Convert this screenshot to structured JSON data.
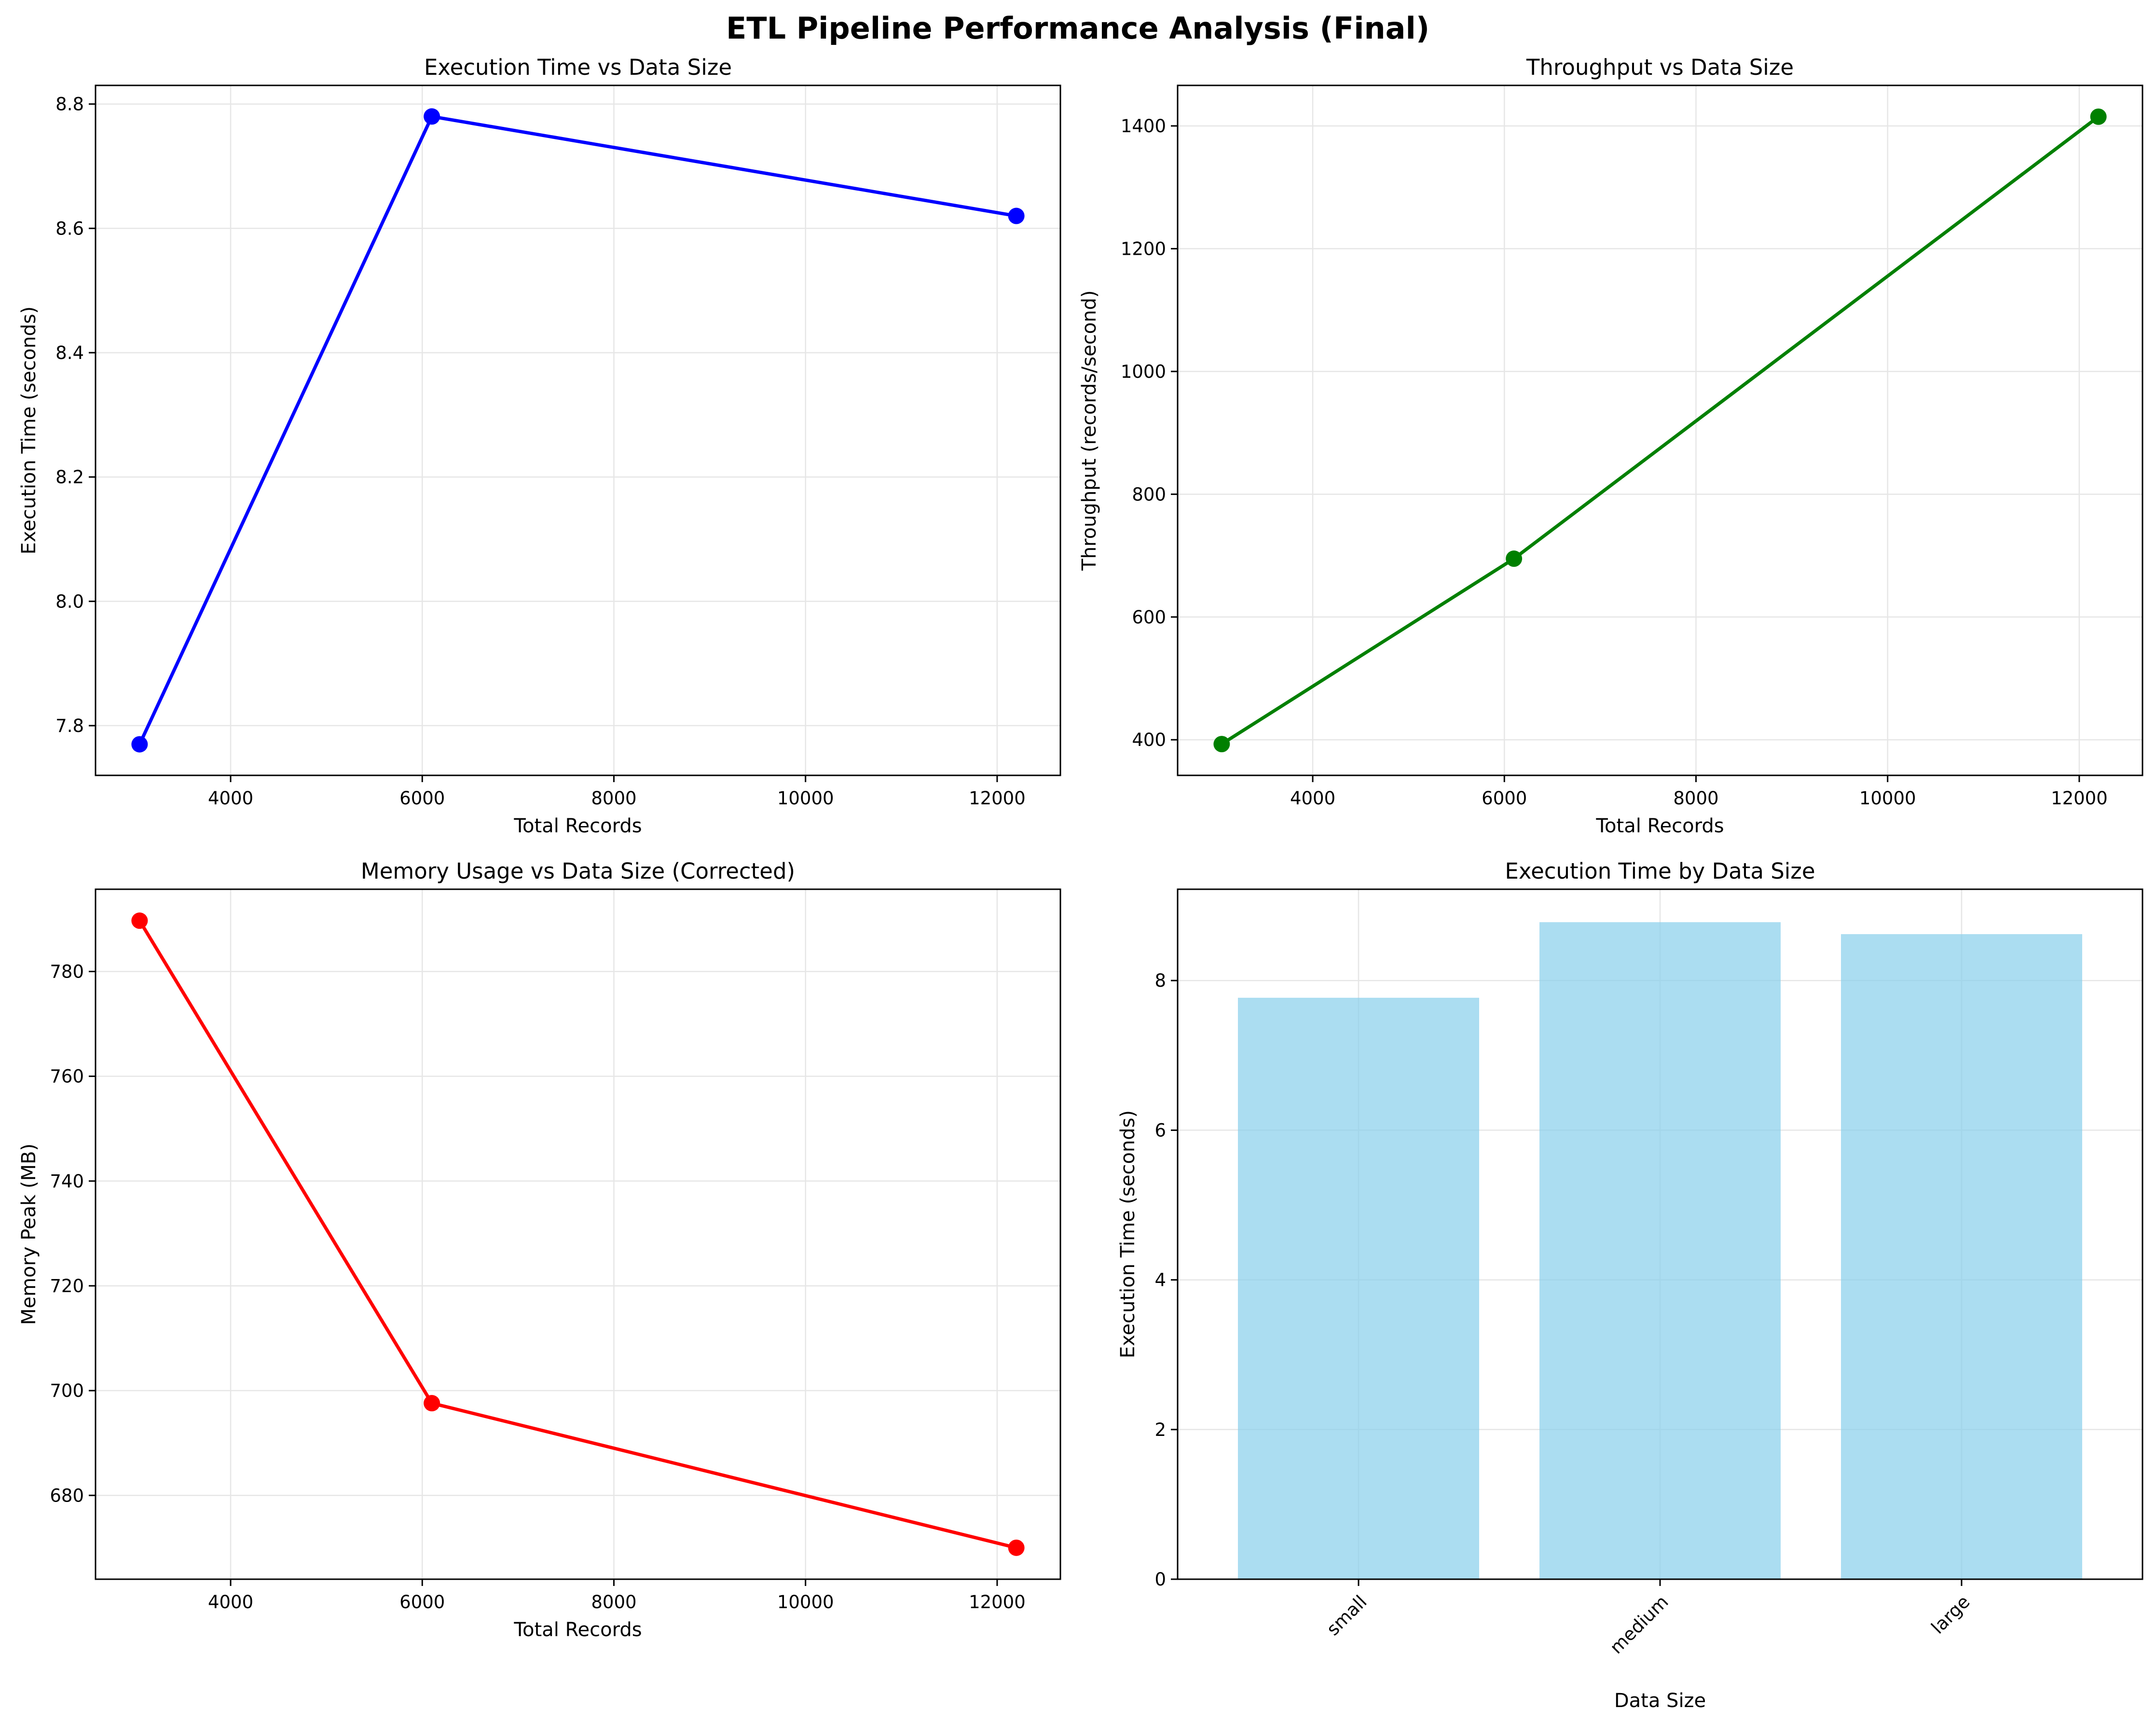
{
  "suptitle": "ETL Pipeline Performance Analysis (Final)",
  "chart_data": [
    {
      "type": "line",
      "title": "Execution Time vs Data Size",
      "xlabel": "Total Records",
      "ylabel": "Execution Time (seconds)",
      "color": "#0000ff",
      "x": [
        3050,
        6100,
        12200
      ],
      "y": [
        7.77,
        8.78,
        8.62
      ],
      "xlim": [
        2590,
        12660
      ],
      "ylim": [
        7.72,
        8.83
      ],
      "xticks": [
        4000,
        6000,
        8000,
        10000,
        12000
      ],
      "xtick_labels": [
        "4000",
        "6000",
        "8000",
        "10000",
        "12000"
      ],
      "yticks": [
        7.8,
        8.0,
        8.2,
        8.4,
        8.6,
        8.8
      ],
      "ytick_labels": [
        "7.8",
        "8.0",
        "8.2",
        "8.4",
        "8.6",
        "8.8"
      ],
      "grid": true
    },
    {
      "type": "line",
      "title": "Throughput vs Data Size",
      "xlabel": "Total Records",
      "ylabel": "Throughput (records/second)",
      "color": "#008000",
      "x": [
        3050,
        6100,
        12200
      ],
      "y": [
        393,
        695,
        1415
      ],
      "xlim": [
        2590,
        12660
      ],
      "ylim": [
        342,
        1466
      ],
      "xticks": [
        4000,
        6000,
        8000,
        10000,
        12000
      ],
      "xtick_labels": [
        "4000",
        "6000",
        "8000",
        "10000",
        "12000"
      ],
      "yticks": [
        400,
        600,
        800,
        1000,
        1200,
        1400
      ],
      "ytick_labels": [
        "400",
        "600",
        "800",
        "1000",
        "1200",
        "1400"
      ],
      "grid": true
    },
    {
      "type": "line",
      "title": "Memory Usage vs Data Size (Corrected)",
      "xlabel": "Total Records",
      "ylabel": "Memory Peak (MB)",
      "color": "#ff0000",
      "x": [
        3050,
        6100,
        12200
      ],
      "y": [
        789.7,
        697.6,
        670.0
      ],
      "xlim": [
        2590,
        12660
      ],
      "ylim": [
        664.0,
        795.7
      ],
      "xticks": [
        4000,
        6000,
        8000,
        10000,
        12000
      ],
      "xtick_labels": [
        "4000",
        "6000",
        "8000",
        "10000",
        "12000"
      ],
      "yticks": [
        680,
        700,
        720,
        740,
        760,
        780
      ],
      "ytick_labels": [
        "680",
        "700",
        "720",
        "740",
        "760",
        "780"
      ],
      "grid": true
    },
    {
      "type": "bar",
      "title": "Execution Time by Data Size",
      "xlabel": "Data Size",
      "ylabel": "Execution Time (seconds)",
      "color": "#87ceeb",
      "categories": [
        "small",
        "medium",
        "large"
      ],
      "values": [
        7.77,
        8.78,
        8.62
      ],
      "ylim": [
        0,
        9.22
      ],
      "yticks": [
        0,
        2,
        4,
        6,
        8
      ],
      "ytick_labels": [
        "0",
        "2",
        "4",
        "6",
        "8"
      ],
      "xtick_rotation": 45,
      "grid": true
    }
  ]
}
